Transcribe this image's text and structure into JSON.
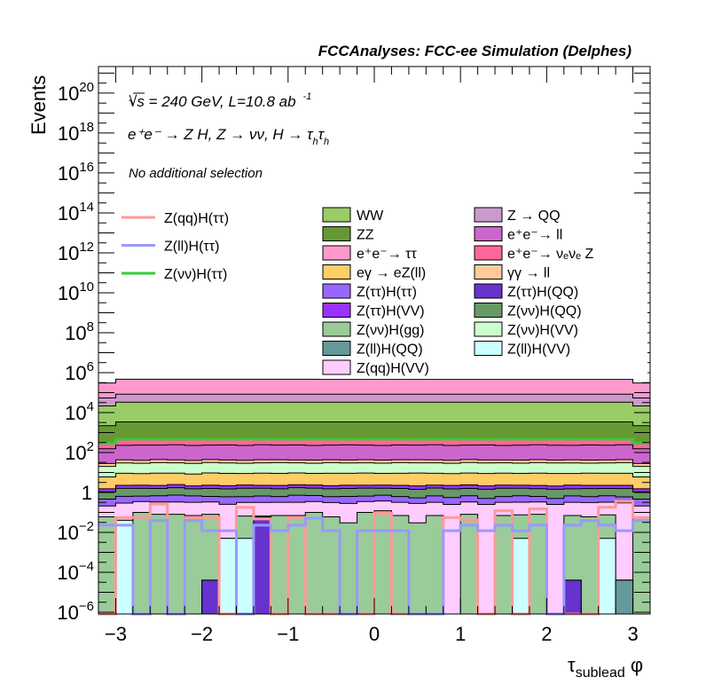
{
  "chart_data": {
    "type": "bar",
    "subtype": "stacked-histogram-log",
    "title": "FCCAnalyses: FCC-ee Simulation (Delphes)",
    "annotations": {
      "energy": "√s = 240 GeV, L=10.8 ab",
      "energy_sup": "-1",
      "process": "e⁺e⁻ → Z H, Z → νν, H → τ",
      "process_sub1": "h",
      "process_mid": "τ",
      "process_sub2": "h",
      "selection": "No additional selection"
    },
    "xlabel": "τ",
    "xlabel_sub": "sublead",
    "xlabel_suffix": " φ",
    "ylabel": "Events",
    "xlim": [
      -3.2,
      3.2
    ],
    "ylog_range": [
      -6.09,
      21.33
    ],
    "ylog": true,
    "nbins": 32,
    "x_ticks": [
      -3,
      -2,
      -1,
      0,
      1,
      2,
      3
    ],
    "x_tick_labels": [
      "−3",
      "−2",
      "−1",
      "0",
      "1",
      "2",
      "3"
    ],
    "y_ticks": [
      -6,
      -4,
      -2,
      0,
      2,
      4,
      6,
      8,
      10,
      12,
      14,
      16,
      18,
      20
    ],
    "y_tick_labels": [
      {
        "base": "10",
        "exp": "−6"
      },
      {
        "base": "10",
        "exp": "−4"
      },
      {
        "base": "10",
        "exp": "−2"
      },
      {
        "base": "1",
        "exp": ""
      },
      {
        "base": "10",
        "exp": "2"
      },
      {
        "base": "10",
        "exp": "4"
      },
      {
        "base": "10",
        "exp": "6"
      },
      {
        "base": "10",
        "exp": "8"
      },
      {
        "base": "10",
        "exp": "10"
      },
      {
        "base": "10",
        "exp": "12"
      },
      {
        "base": "10",
        "exp": "14"
      },
      {
        "base": "10",
        "exp": "16"
      },
      {
        "base": "10",
        "exp": "18"
      },
      {
        "base": "10",
        "exp": "20"
      }
    ],
    "stack_bottom_to_top": [
      {
        "name": "Z(ll)H(QQ)",
        "color": "#669999",
        "values": [
          0,
          0,
          0,
          0,
          0,
          0,
          0,
          0,
          0,
          0,
          0,
          0,
          0,
          0,
          0,
          0,
          0,
          0,
          0,
          0,
          0,
          0,
          0,
          0,
          0,
          0,
          0,
          0,
          0,
          0,
          4e-05,
          0
        ]
      },
      {
        "name": "Z(ττ)H(QQ)",
        "color": "#6633cc",
        "values": [
          0,
          0,
          0,
          0,
          0,
          0,
          4e-05,
          0,
          0,
          0.06,
          0,
          0,
          0,
          0,
          0,
          0,
          0,
          0,
          0,
          0,
          0,
          0,
          0,
          0,
          0,
          0,
          0,
          4e-05,
          0,
          0,
          0,
          0
        ]
      },
      {
        "name": "Z(ll)H(VV)",
        "color": "#ccffff",
        "values": [
          0,
          0.04,
          0,
          0,
          0,
          0,
          0,
          0.005,
          0.005,
          0.005,
          0,
          0,
          0,
          0,
          0,
          0,
          0,
          0,
          0,
          0,
          0,
          0,
          0,
          0,
          0.005,
          0,
          0,
          0,
          0,
          0.005,
          0,
          0
        ]
      },
      {
        "name": "Z(νν)H(gg)",
        "color": "#99cc99",
        "values": [
          0.06,
          0,
          0.1,
          0.08,
          0.08,
          0.07,
          0.08,
          0,
          0.06,
          0,
          0.07,
          0.07,
          0.1,
          0.06,
          0.03,
          0.1,
          0.12,
          0.07,
          0.03,
          0.07,
          0,
          0.08,
          0,
          0.07,
          0.07,
          0.08,
          0,
          0.07,
          0.06,
          0.07,
          0,
          0.06
        ]
      },
      {
        "name": "Z(qq)H(VV)",
        "color": "#ffccff",
        "values": [
          0.15,
          0.25,
          0.25,
          0.25,
          0.25,
          0.25,
          0.25,
          0.25,
          0.25,
          0.25,
          0.25,
          0.25,
          0.25,
          0.25,
          0.25,
          0.25,
          0.25,
          0.25,
          0.25,
          0.25,
          0.25,
          0.25,
          0.25,
          0.25,
          0.25,
          0.25,
          0.25,
          0.25,
          0.25,
          0.25,
          0.3,
          0.15
        ]
      },
      {
        "name": "Z(ττ)H(ττ)",
        "color": "#9966ff",
        "values": [
          0.25,
          0.35,
          0.3,
          0.35,
          0.4,
          0.35,
          0.3,
          0.35,
          0.3,
          0.35,
          0.3,
          0.4,
          0.35,
          0.3,
          0.35,
          0.3,
          0.35,
          0.3,
          0.25,
          0.35,
          0.3,
          0.35,
          0.25,
          0.3,
          0.35,
          0.3,
          0.25,
          0.35,
          0.3,
          0.35,
          0.3,
          0.25
        ]
      },
      {
        "name": "Z(νν)H(QQ)",
        "color": "#669966",
        "values": [
          0.6,
          0.95,
          0.95,
          0.9,
          1.0,
          0.85,
          0.95,
          0.9,
          1.0,
          0.95,
          0.9,
          1.0,
          0.95,
          0.9,
          0.95,
          1.0,
          0.9,
          0.95,
          0.9,
          1.0,
          0.95,
          0.9,
          0.95,
          1.0,
          0.95,
          0.9,
          0.95,
          0.85,
          0.95,
          0.9,
          0.95,
          0.6
        ]
      },
      {
        "name": "Z(ττ)H(VV)",
        "color": "#9933ff",
        "values": [
          0.45,
          0.68,
          0.7,
          0.65,
          0.75,
          0.6,
          0.7,
          0.68,
          0.72,
          0.65,
          0.7,
          0.68,
          0.7,
          0.66,
          0.7,
          0.65,
          0.7,
          0.68,
          0.7,
          0.66,
          0.72,
          0.8,
          0.68,
          0.7,
          0.66,
          0.7,
          0.65,
          0.8,
          0.7,
          0.68,
          0.7,
          0.45
        ]
      },
      {
        "name": "eγ → eZ(ll)",
        "color": "#ffcc66",
        "values": [
          4.5,
          6.8,
          6.5,
          7.0,
          6.8,
          6.2,
          7.2,
          6.8,
          6.5,
          7.0,
          6.8,
          7.1,
          6.6,
          6.9,
          6.8,
          7.0,
          6.7,
          6.9,
          7.2,
          6.8,
          6.6,
          7.0,
          6.8,
          6.9,
          6.7,
          7.0,
          6.8,
          6.6,
          7.0,
          6.8,
          6.9,
          4.5
        ]
      },
      {
        "name": "Z(νν)H(VV)",
        "color": "#ccffcc",
        "values": [
          14,
          21,
          20,
          22,
          21,
          20,
          22,
          21,
          20,
          21,
          22,
          21,
          20,
          22,
          21,
          21,
          20,
          22,
          21,
          21,
          20,
          22,
          21,
          21,
          20,
          22,
          21,
          21,
          20,
          21,
          22,
          14
        ]
      },
      {
        "name": "γγ → ll",
        "color": "#ffcc99",
        "values": [
          8,
          12.5,
          12,
          13,
          12.5,
          12,
          13,
          12.5,
          12,
          13,
          12.5,
          12,
          13,
          12.5,
          12,
          13,
          12.5,
          12,
          13,
          12.5,
          12,
          13,
          12.5,
          12,
          13,
          12.5,
          12,
          13,
          12.5,
          12,
          13,
          8
        ]
      },
      {
        "name": "e⁺e⁻→ ll",
        "color": "#cc66cc",
        "values": [
          125,
          185,
          195,
          190,
          200,
          185,
          190,
          195,
          185,
          200,
          190,
          195,
          185,
          190,
          200,
          190,
          185,
          195,
          190,
          200,
          185,
          190,
          195,
          185,
          190,
          200,
          190,
          185,
          195,
          190,
          200,
          125
        ]
      },
      {
        "name": "e⁺e⁻→ νₑνₑ Z",
        "color": "#ff6699",
        "values": [
          150,
          234,
          234,
          234,
          234,
          234,
          234,
          234,
          234,
          234,
          234,
          234,
          234,
          234,
          234,
          234,
          234,
          234,
          234,
          234,
          234,
          234,
          234,
          234,
          234,
          234,
          234,
          234,
          234,
          234,
          234,
          150
        ]
      },
      {
        "name": "ZZ",
        "color": "#669933",
        "values": [
          1900,
          2920,
          2920,
          2920,
          2920,
          2920,
          2920,
          2920,
          2920,
          2920,
          2920,
          2920,
          2920,
          2920,
          2920,
          2920,
          2920,
          2920,
          2920,
          2920,
          2920,
          2920,
          2920,
          2920,
          2920,
          2920,
          2920,
          2920,
          2920,
          2920,
          2920,
          1900
        ]
      },
      {
        "name": "WW",
        "color": "#99cc66",
        "values": [
          19200,
          29600,
          29600,
          29600,
          29600,
          29600,
          29600,
          29600,
          29600,
          29600,
          29600,
          29600,
          29600,
          29600,
          29600,
          29600,
          29600,
          29600,
          29600,
          29600,
          29600,
          29600,
          29600,
          29600,
          29600,
          29600,
          29600,
          29600,
          29600,
          29600,
          29600,
          19200
        ]
      },
      {
        "name": "Z → QQ",
        "color": "#cc99cc",
        "values": [
          32500,
          50000,
          50000,
          50000,
          50000,
          50000,
          50000,
          50000,
          50000,
          50000,
          50000,
          50000,
          50000,
          50000,
          50000,
          50000,
          50000,
          50000,
          50000,
          50000,
          50000,
          50000,
          50000,
          50000,
          50000,
          50000,
          50000,
          50000,
          50000,
          50000,
          50000,
          32500
        ]
      },
      {
        "name": "e⁺e⁻→ ττ",
        "color": "#ff99cc",
        "values": [
          250000,
          385000,
          385000,
          385000,
          385000,
          385000,
          385000,
          385000,
          385000,
          385000,
          385000,
          385000,
          385000,
          385000,
          385000,
          385000,
          385000,
          385000,
          385000,
          385000,
          385000,
          385000,
          385000,
          385000,
          385000,
          385000,
          385000,
          385000,
          385000,
          385000,
          385000,
          250000
        ]
      }
    ],
    "signals": [
      {
        "name": "Z(qq)H(ττ)",
        "color": "#ff9999",
        "values": [
          0,
          0.055,
          0.055,
          0.26,
          0,
          0.055,
          0.055,
          0,
          0.18,
          0.047,
          0,
          0.055,
          0,
          0,
          0,
          0,
          0.091,
          0,
          0,
          0,
          0.055,
          0.042,
          0,
          0.12,
          0,
          0.15,
          0,
          0,
          0,
          0.18,
          0.36,
          0.055
        ]
      },
      {
        "name": "Z(ll)H(ττ)",
        "color": "#9999ff",
        "values": [
          0.023,
          0.023,
          0,
          0.039,
          0,
          0.039,
          0.012,
          0.012,
          0,
          0.023,
          0.012,
          0.023,
          0.051,
          0.012,
          0,
          0.012,
          0.012,
          0.012,
          0,
          0,
          0.012,
          0.023,
          0.012,
          0.023,
          0.012,
          0.023,
          0,
          0.023,
          0.039,
          0.023,
          0.012,
          0.039
        ]
      },
      {
        "name": "Z(νν)H(ττ)",
        "color": "#33cc33",
        "values": [
          300,
          470,
          470,
          470,
          470,
          470,
          470,
          470,
          470,
          470,
          470,
          470,
          470,
          470,
          470,
          470,
          470,
          470,
          470,
          470,
          470,
          470,
          470,
          470,
          470,
          470,
          470,
          470,
          470,
          470,
          470,
          300
        ]
      }
    ],
    "legend_placement": "top-right",
    "legend_signals": [
      "Z(qq)H(ττ)",
      "Z(ll)H(ττ)",
      "Z(νν)H(ττ)"
    ],
    "legend_col1": [
      "WW",
      "ZZ",
      "e⁺e⁻→ ττ",
      "eγ → eZ(ll)",
      "Z(ττ)H(ττ)",
      "Z(ττ)H(VV)",
      "Z(νν)H(gg)",
      "Z(ll)H(QQ)",
      "Z(qq)H(VV)"
    ],
    "legend_col2": [
      "Z → QQ",
      "e⁺e⁻→ ll",
      "e⁺e⁻→ νₑνₑ Z",
      "γγ → ll",
      "Z(ττ)H(QQ)",
      "Z(νν)H(QQ)",
      "Z(νν)H(VV)",
      "Z(ll)H(VV)"
    ]
  }
}
